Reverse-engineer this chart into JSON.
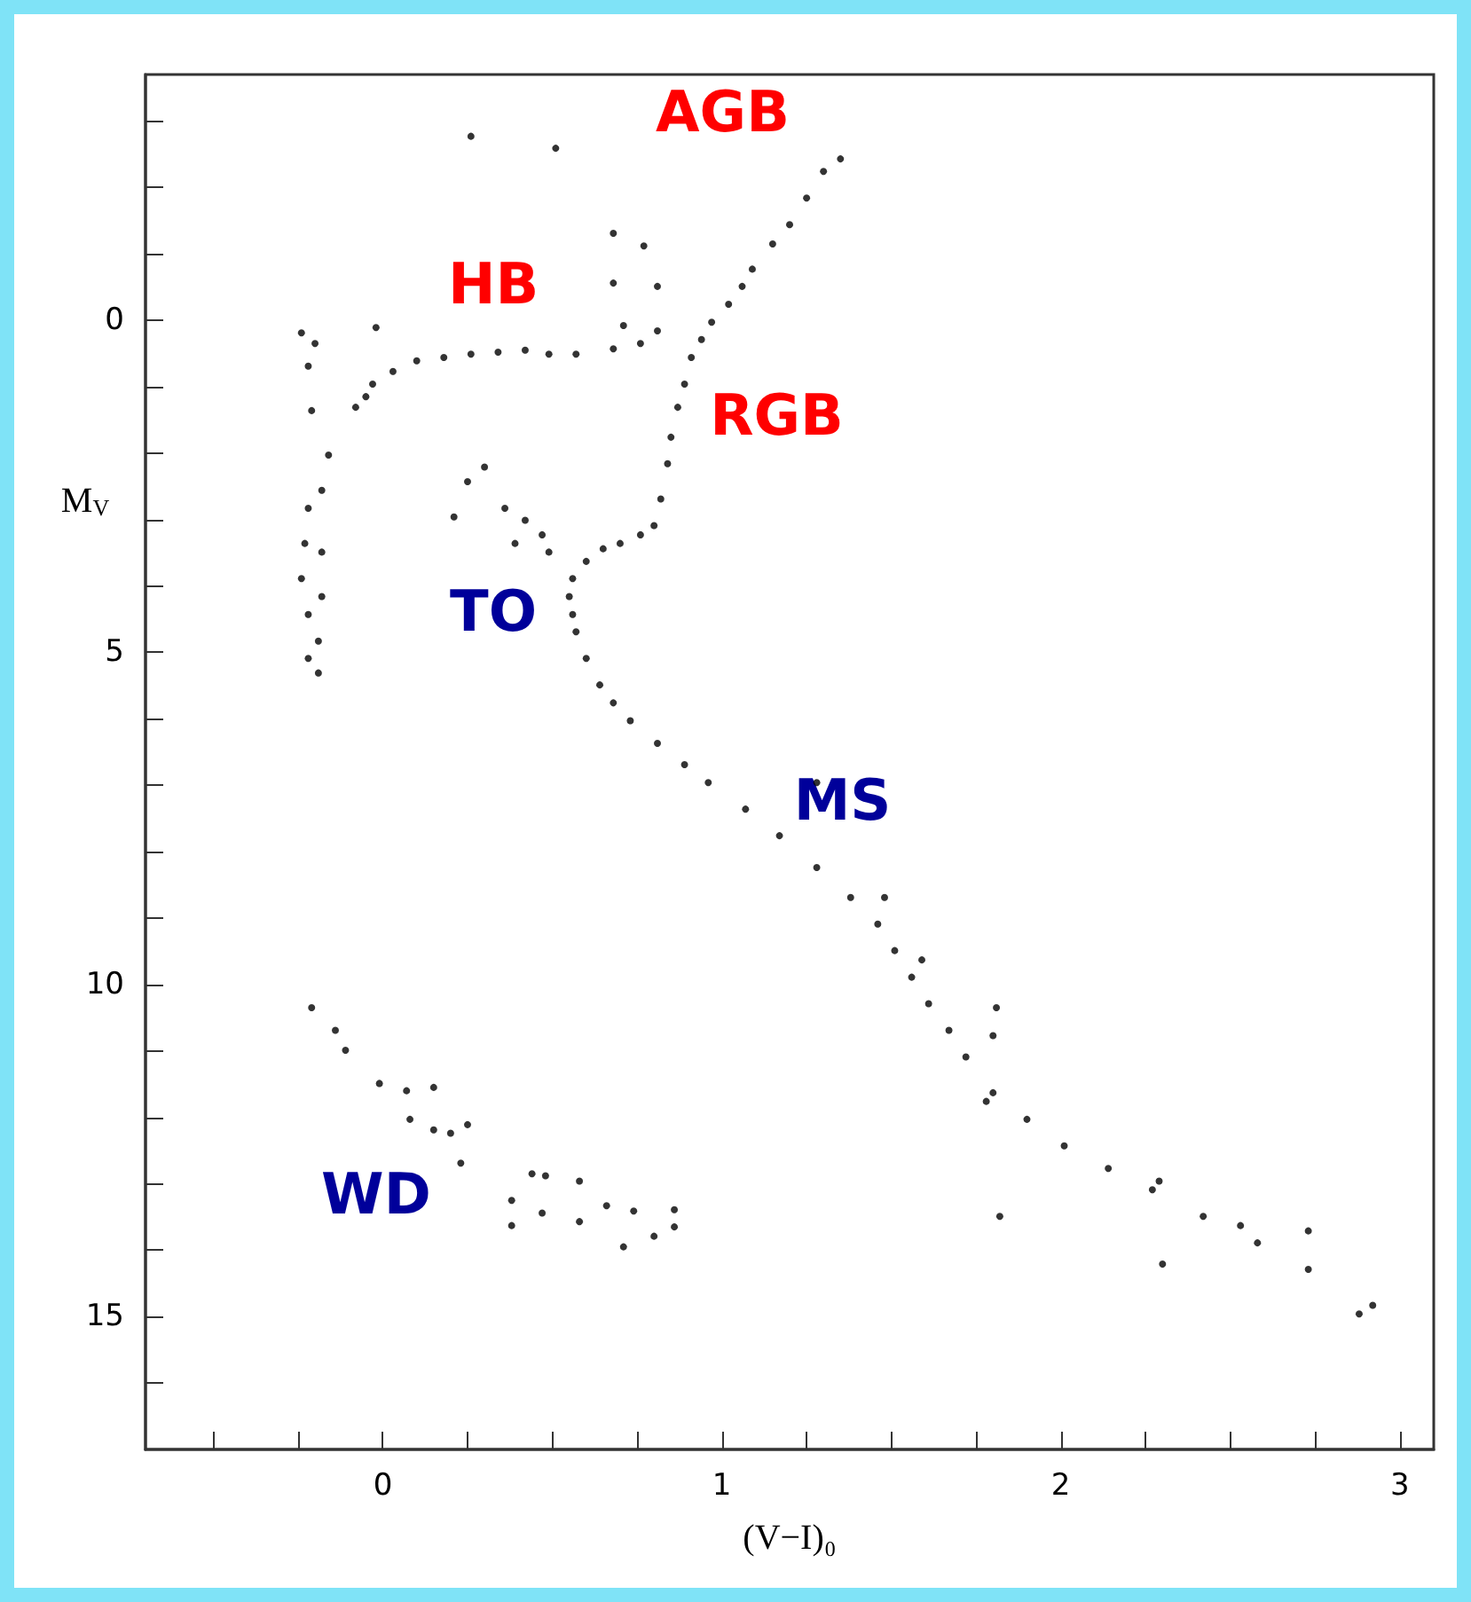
{
  "chart_data": {
    "type": "scatter",
    "xlabel": "(V−I)₀",
    "ylabel": "M$_{V}$",
    "xlim": [
      -0.7,
      3.1
    ],
    "ylim": [
      17,
      -3.7
    ],
    "xticks": [
      {
        "value": -0.5,
        "label": null
      },
      {
        "value": -0.25,
        "label": null
      },
      0,
      {
        "value": 0.25,
        "label": null
      },
      {
        "value": 0.5,
        "label": null
      },
      {
        "value": 0.75,
        "label": null
      },
      1,
      {
        "value": 1.25,
        "label": null
      },
      {
        "value": 1.5,
        "label": null
      },
      {
        "value": 1.75,
        "label": null
      },
      2,
      {
        "value": 2.25,
        "label": null
      },
      {
        "value": 2.5,
        "label": null
      },
      {
        "value": 2.75,
        "label": null
      },
      3
    ],
    "yticks": [
      {
        "value": -3,
        "label": null
      },
      {
        "value": -2,
        "label": null
      },
      {
        "value": -1,
        "label": null
      },
      0,
      {
        "value": 1,
        "label": null
      },
      {
        "value": 2,
        "label": null
      },
      {
        "value": 3,
        "label": null
      },
      {
        "value": 4,
        "label": null
      },
      5,
      {
        "value": 6,
        "label": null
      },
      {
        "value": 7,
        "label": null
      },
      {
        "value": 8,
        "label": null
      },
      {
        "value": 9,
        "label": null
      },
      10,
      {
        "value": 11,
        "label": null
      },
      {
        "value": 12,
        "label": null
      },
      {
        "value": 13,
        "label": null
      },
      {
        "value": 14,
        "label": null
      },
      15,
      {
        "value": 16,
        "label": null
      }
    ],
    "grid": false,
    "marker": "circle",
    "series": [
      {
        "color": "#000000",
        "x": [
          1.35,
          1.3,
          1.25,
          1.2,
          1.15,
          1.09,
          1.06,
          1.02,
          0.97,
          0.94,
          0.91,
          0.89,
          0.87,
          0.85,
          0.84,
          0.82,
          0.8,
          0.76,
          0.7,
          0.65,
          0.6,
          0.56,
          0.55,
          0.56,
          0.57,
          0.6,
          0.64,
          0.68,
          0.73,
          0.81,
          0.89,
          0.96,
          1.07,
          1.17,
          1.28,
          1.38,
          1.46,
          1.51,
          1.56,
          1.61,
          1.67,
          1.72,
          1.8,
          1.9,
          2.01,
          2.14,
          2.27,
          2.42,
          2.58,
          2.73,
          2.92,
          1.78,
          1.28,
          1.48,
          1.59,
          1.81,
          1.8,
          2.53,
          2.73,
          2.88,
          2.3,
          1.82,
          2.29,
          -0.22,
          -0.24,
          -0.2,
          -0.08,
          -0.05,
          -0.03,
          0.03,
          0.1,
          0.18,
          0.26,
          0.34,
          0.42,
          0.49,
          0.57,
          0.68,
          0.76,
          0.81,
          -0.02,
          -0.21,
          -0.16,
          -0.18,
          -0.22,
          -0.23,
          -0.18,
          -0.24,
          -0.18,
          -0.22,
          -0.19,
          -0.22,
          -0.19,
          0.3,
          0.25,
          0.21,
          0.36,
          0.42,
          0.47,
          0.39,
          0.49,
          0.26,
          0.51,
          0.68,
          0.77,
          0.68,
          0.81,
          0.71,
          -0.21,
          -0.14,
          -0.11,
          -0.01,
          0.07,
          0.15,
          0.08,
          0.15,
          0.2,
          0.25,
          0.23,
          0.38,
          0.44,
          0.48,
          0.38,
          0.47,
          0.58,
          0.58,
          0.66,
          0.74,
          0.71,
          0.8,
          0.86,
          0.86
        ],
        "values": [
          -2.43,
          -2.24,
          -1.84,
          -1.44,
          -1.15,
          -0.77,
          -0.51,
          -0.24,
          0.03,
          0.29,
          0.56,
          0.96,
          1.31,
          1.76,
          2.16,
          2.69,
          3.09,
          3.23,
          3.36,
          3.44,
          3.63,
          3.89,
          4.16,
          4.43,
          4.69,
          5.09,
          5.49,
          5.76,
          6.03,
          6.37,
          6.69,
          6.96,
          7.36,
          7.76,
          8.24,
          8.69,
          9.09,
          9.49,
          9.89,
          10.29,
          10.69,
          11.09,
          11.63,
          12.03,
          12.43,
          12.77,
          13.09,
          13.49,
          13.89,
          14.29,
          14.83,
          11.76,
          6.96,
          8.69,
          9.63,
          10.35,
          10.77,
          13.63,
          13.71,
          14.96,
          14.21,
          13.49,
          12.96,
          0.69,
          0.19,
          0.35,
          1.31,
          1.15,
          0.96,
          0.77,
          0.61,
          0.56,
          0.51,
          0.48,
          0.45,
          0.51,
          0.51,
          0.43,
          0.35,
          0.16,
          0.11,
          1.36,
          2.03,
          2.56,
          2.83,
          3.36,
          3.49,
          3.89,
          4.16,
          4.43,
          4.83,
          5.09,
          5.31,
          2.21,
          2.43,
          2.96,
          2.83,
          3.01,
          3.23,
          3.36,
          3.49,
          -2.77,
          -2.59,
          -1.31,
          -1.12,
          -0.56,
          -0.51,
          0.08,
          10.35,
          10.69,
          10.99,
          11.49,
          11.6,
          11.55,
          12.03,
          12.19,
          12.24,
          12.11,
          12.69,
          13.25,
          12.85,
          12.88,
          13.63,
          13.44,
          12.96,
          13.57,
          13.33,
          13.41,
          13.95,
          13.79,
          13.39,
          13.65
        ]
      }
    ],
    "annotations": [
      "AGB",
      "HB",
      "RGB",
      "TO",
      "MS",
      "WD"
    ]
  }
}
